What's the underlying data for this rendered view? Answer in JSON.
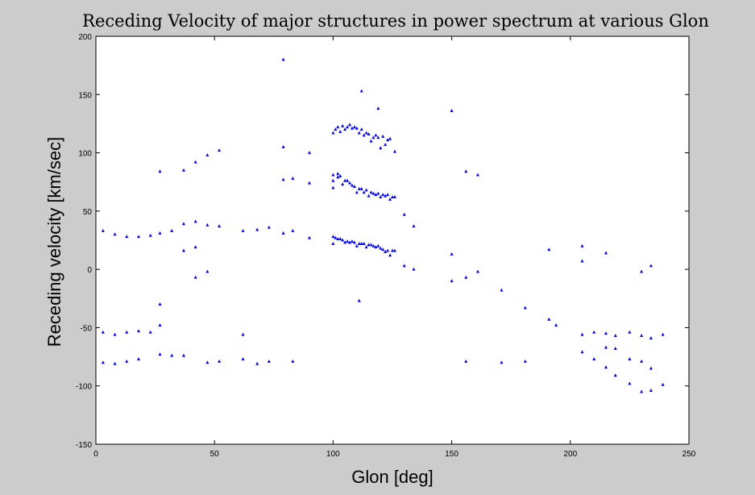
{
  "chart_data": {
    "type": "scatter",
    "title": "Receding Velocity of major structures in power spectrum at various Glon",
    "xlabel": "Glon [deg]",
    "ylabel": "Receding velocity [km/sec]",
    "xlim": [
      0,
      250
    ],
    "ylim": [
      -150,
      200
    ],
    "xticks": [
      "0",
      "50",
      "100",
      "150",
      "200",
      "250"
    ],
    "yticks": [
      "200",
      "150",
      "100",
      "50",
      "0",
      "-50",
      "-100",
      "-150"
    ],
    "grid": false,
    "marker_color": "#0000ff",
    "background_color": "#cccccc",
    "plot_background": "#ffffff",
    "points": [
      [
        3,
        33
      ],
      [
        3,
        -54
      ],
      [
        3,
        -80
      ],
      [
        8,
        30
      ],
      [
        8,
        -56
      ],
      [
        8,
        -81
      ],
      [
        13,
        28
      ],
      [
        13,
        -54
      ],
      [
        13,
        -79
      ],
      [
        18,
        28
      ],
      [
        18,
        -53
      ],
      [
        18,
        -77
      ],
      [
        23,
        29
      ],
      [
        23,
        -54
      ],
      [
        27,
        84
      ],
      [
        27,
        31
      ],
      [
        27,
        -30
      ],
      [
        27,
        -48
      ],
      [
        27,
        -73
      ],
      [
        32,
        33
      ],
      [
        32,
        -74
      ],
      [
        37,
        85
      ],
      [
        37,
        39
      ],
      [
        37,
        16
      ],
      [
        37,
        -74
      ],
      [
        42,
        92
      ],
      [
        42,
        41
      ],
      [
        42,
        19
      ],
      [
        42,
        -7
      ],
      [
        47,
        98
      ],
      [
        47,
        38
      ],
      [
        47,
        -2
      ],
      [
        47,
        -80
      ],
      [
        52,
        102
      ],
      [
        52,
        37
      ],
      [
        52,
        -79
      ],
      [
        62,
        33
      ],
      [
        62,
        -56
      ],
      [
        62,
        -77
      ],
      [
        68,
        34
      ],
      [
        68,
        -81
      ],
      [
        73,
        36
      ],
      [
        73,
        -79
      ],
      [
        79,
        180
      ],
      [
        79,
        105
      ],
      [
        79,
        77
      ],
      [
        79,
        31
      ],
      [
        83,
        78
      ],
      [
        83,
        33
      ],
      [
        83,
        -79
      ],
      [
        90,
        100
      ],
      [
        90,
        74
      ],
      [
        90,
        27
      ],
      [
        100,
        117
      ],
      [
        100,
        81
      ],
      [
        100,
        76
      ],
      [
        100,
        70
      ],
      [
        100,
        28
      ],
      [
        100,
        22
      ],
      [
        101,
        120
      ],
      [
        101,
        27
      ],
      [
        102,
        122
      ],
      [
        102,
        82
      ],
      [
        102,
        79
      ],
      [
        102,
        26
      ],
      [
        103,
        118
      ],
      [
        103,
        80
      ],
      [
        103,
        26
      ],
      [
        104,
        123
      ],
      [
        104,
        73
      ],
      [
        104,
        25
      ],
      [
        105,
        120
      ],
      [
        105,
        76
      ],
      [
        105,
        23
      ],
      [
        106,
        122
      ],
      [
        106,
        76
      ],
      [
        106,
        24
      ],
      [
        107,
        124
      ],
      [
        107,
        74
      ],
      [
        107,
        23
      ],
      [
        108,
        121
      ],
      [
        108,
        72
      ],
      [
        108,
        24
      ],
      [
        109,
        122
      ],
      [
        109,
        71
      ],
      [
        109,
        23
      ],
      [
        110,
        121
      ],
      [
        110,
        66
      ],
      [
        110,
        20
      ],
      [
        111,
        117
      ],
      [
        111,
        69
      ],
      [
        111,
        -27
      ],
      [
        111,
        22
      ],
      [
        112,
        153
      ],
      [
        112,
        120
      ],
      [
        112,
        69
      ],
      [
        112,
        22
      ],
      [
        113,
        115
      ],
      [
        113,
        66
      ],
      [
        113,
        22
      ],
      [
        114,
        117
      ],
      [
        114,
        68
      ],
      [
        114,
        19
      ],
      [
        115,
        116
      ],
      [
        115,
        63
      ],
      [
        115,
        21
      ],
      [
        116,
        110
      ],
      [
        116,
        66
      ],
      [
        116,
        21
      ],
      [
        117,
        113
      ],
      [
        117,
        65
      ],
      [
        117,
        20
      ],
      [
        118,
        115
      ],
      [
        118,
        64
      ],
      [
        118,
        19
      ],
      [
        119,
        138
      ],
      [
        119,
        113
      ],
      [
        119,
        65
      ],
      [
        119,
        20
      ],
      [
        120,
        104
      ],
      [
        120,
        62
      ],
      [
        120,
        18
      ],
      [
        121,
        114
      ],
      [
        121,
        64
      ],
      [
        121,
        17
      ],
      [
        122,
        107
      ],
      [
        122,
        63
      ],
      [
        122,
        15
      ],
      [
        123,
        111
      ],
      [
        123,
        64
      ],
      [
        123,
        16
      ],
      [
        124,
        112
      ],
      [
        124,
        60
      ],
      [
        124,
        12
      ],
      [
        125,
        62
      ],
      [
        125,
        16
      ],
      [
        126,
        101
      ],
      [
        126,
        62
      ],
      [
        126,
        16
      ],
      [
        130,
        47
      ],
      [
        130,
        3
      ],
      [
        134,
        37
      ],
      [
        134,
        0
      ],
      [
        150,
        136
      ],
      [
        150,
        13
      ],
      [
        150,
        -10
      ],
      [
        156,
        84
      ],
      [
        156,
        -7
      ],
      [
        156,
        -79
      ],
      [
        161,
        81
      ],
      [
        161,
        -2
      ],
      [
        171,
        -18
      ],
      [
        171,
        -80
      ],
      [
        181,
        -33
      ],
      [
        181,
        -79
      ],
      [
        191,
        17
      ],
      [
        191,
        -43
      ],
      [
        194,
        -48
      ],
      [
        205,
        20
      ],
      [
        205,
        7
      ],
      [
        205,
        -56
      ],
      [
        205,
        -71
      ],
      [
        210,
        -54
      ],
      [
        210,
        -77
      ],
      [
        215,
        14
      ],
      [
        215,
        -55
      ],
      [
        215,
        -67
      ],
      [
        215,
        -84
      ],
      [
        219,
        -57
      ],
      [
        219,
        -68
      ],
      [
        219,
        -91
      ],
      [
        225,
        -54
      ],
      [
        225,
        -77
      ],
      [
        225,
        -98
      ],
      [
        230,
        -2
      ],
      [
        230,
        -57
      ],
      [
        230,
        -79
      ],
      [
        230,
        -105
      ],
      [
        234,
        3
      ],
      [
        234,
        -59
      ],
      [
        234,
        -85
      ],
      [
        234,
        -104
      ],
      [
        239,
        -56
      ],
      [
        239,
        -99
      ]
    ]
  }
}
